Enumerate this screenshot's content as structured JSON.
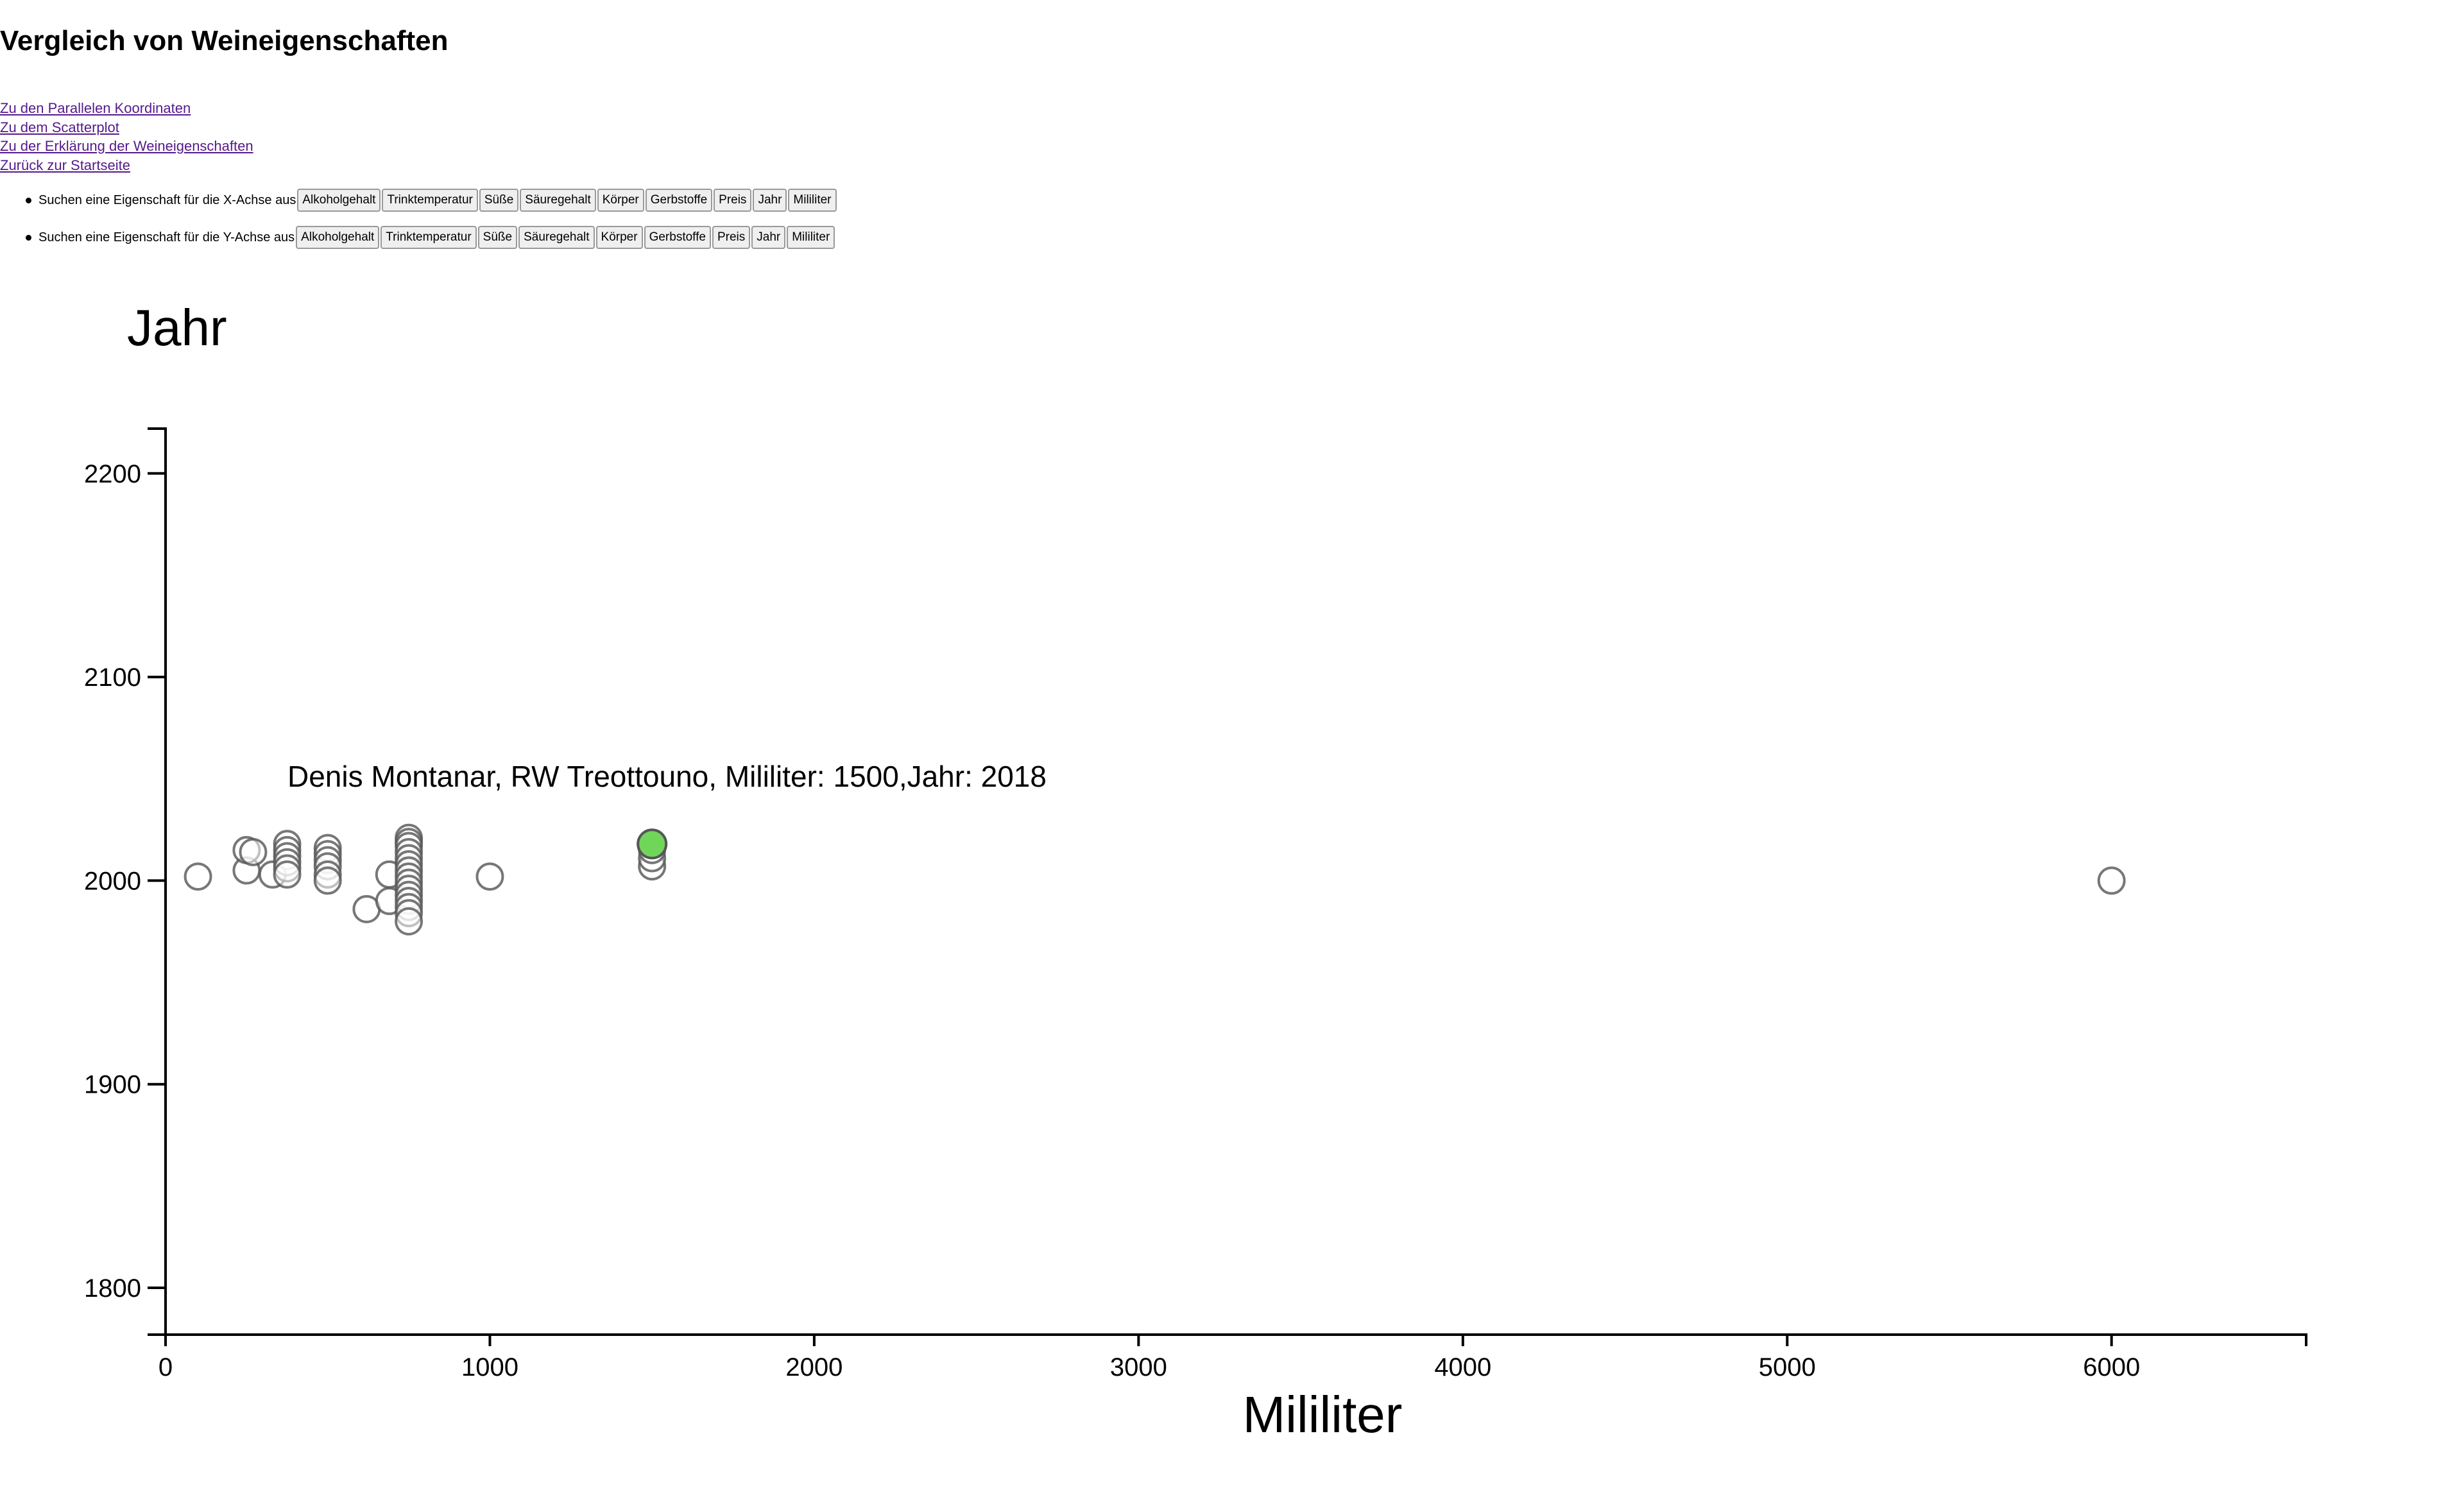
{
  "page": {
    "title": "Vergleich von Weineigenschaften",
    "links": [
      "Zu den Parallelen Koordinaten",
      "Zu dem Scatterplot",
      "Zu der Erklärung der Weineigenschaften",
      "Zurück zur Startseite"
    ],
    "x_picker": {
      "label": "Suchen eine Eigenschaft für die X-Achse aus",
      "options": [
        "Alkoholgehalt",
        "Trinktemperatur",
        "Süße",
        "Säuregehalt",
        "Körper",
        "Gerbstoffe",
        "Preis",
        "Jahr",
        "Mililiter"
      ]
    },
    "y_picker": {
      "label": "Suchen eine Eigenschaft für die Y-Achse aus",
      "options": [
        "Alkoholgehalt",
        "Trinktemperatur",
        "Süße",
        "Säuregehalt",
        "Körper",
        "Gerbstoffe",
        "Preis",
        "Jahr",
        "Mililiter"
      ]
    }
  },
  "chart_data": {
    "type": "scatter",
    "xlabel": "Mililiter",
    "ylabel": "Jahr",
    "xlim": [
      0,
      6600
    ],
    "ylim": [
      1777,
      2222
    ],
    "xticks": [
      0,
      1000,
      2000,
      3000,
      4000,
      5000,
      6000
    ],
    "yticks": [
      1800,
      1900,
      2000,
      2100,
      2200
    ],
    "grid": false,
    "colors": {
      "point_stroke": "#555555",
      "highlight_fill": "#6fd65a"
    },
    "tooltip": "Denis Montanar, RW Treottouno, Mililiter: 1500,Jahr: 2018",
    "highlight": {
      "x": 1500,
      "y": 2018
    },
    "points": [
      {
        "x": 100,
        "y": 2002
      },
      {
        "x": 250,
        "y": 2005
      },
      {
        "x": 250,
        "y": 2015
      },
      {
        "x": 270,
        "y": 2014
      },
      {
        "x": 330,
        "y": 2003
      },
      {
        "x": 375,
        "y": 2018
      },
      {
        "x": 375,
        "y": 2015
      },
      {
        "x": 375,
        "y": 2012
      },
      {
        "x": 375,
        "y": 2009
      },
      {
        "x": 375,
        "y": 2006
      },
      {
        "x": 375,
        "y": 2003
      },
      {
        "x": 500,
        "y": 2016
      },
      {
        "x": 500,
        "y": 2013
      },
      {
        "x": 500,
        "y": 2010
      },
      {
        "x": 500,
        "y": 2007
      },
      {
        "x": 500,
        "y": 2003
      },
      {
        "x": 500,
        "y": 2000
      },
      {
        "x": 620,
        "y": 1986
      },
      {
        "x": 690,
        "y": 1990
      },
      {
        "x": 690,
        "y": 2003
      },
      {
        "x": 750,
        "y": 2021
      },
      {
        "x": 750,
        "y": 2019
      },
      {
        "x": 750,
        "y": 2017
      },
      {
        "x": 750,
        "y": 2014
      },
      {
        "x": 750,
        "y": 2011
      },
      {
        "x": 750,
        "y": 2008
      },
      {
        "x": 750,
        "y": 2005
      },
      {
        "x": 750,
        "y": 2002
      },
      {
        "x": 750,
        "y": 1999
      },
      {
        "x": 750,
        "y": 1996
      },
      {
        "x": 750,
        "y": 1993
      },
      {
        "x": 750,
        "y": 1990
      },
      {
        "x": 750,
        "y": 1987
      },
      {
        "x": 750,
        "y": 1984
      },
      {
        "x": 750,
        "y": 1980
      },
      {
        "x": 1000,
        "y": 2002
      },
      {
        "x": 1500,
        "y": 2007
      },
      {
        "x": 1500,
        "y": 2011
      },
      {
        "x": 1500,
        "y": 2015
      },
      {
        "x": 6000,
        "y": 2000
      }
    ]
  }
}
